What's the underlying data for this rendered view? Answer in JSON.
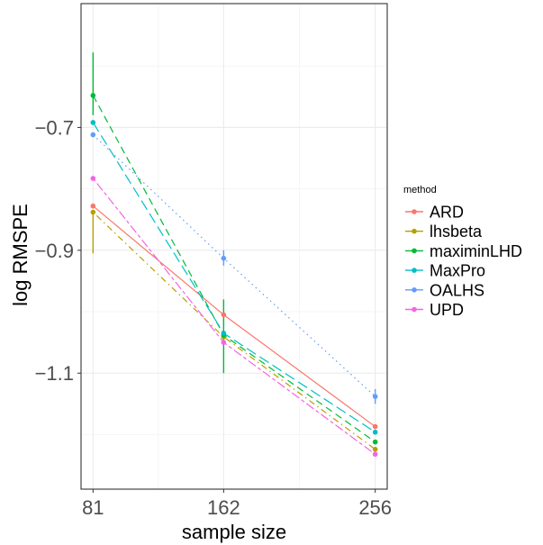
{
  "chart_data": {
    "type": "line",
    "xlabel": "sample size",
    "ylabel": "log RMSPE",
    "x_ticks": [
      81,
      162,
      256
    ],
    "y_ticks": [
      -0.7,
      -0.9,
      -1.1
    ],
    "y_tick_labels": [
      "−0.7",
      "−0.9",
      "−1.1"
    ],
    "legend_title": "method",
    "legend_position": "right",
    "grid": true,
    "series": [
      {
        "name": "ARD",
        "color": "#F8766D",
        "dash": "solid",
        "points": [
          {
            "x": 81,
            "y": -0.828,
            "lo": -0.828,
            "hi": -0.828
          },
          {
            "x": 162,
            "y": -1.005,
            "lo": -1.005,
            "hi": -1.005
          },
          {
            "x": 256,
            "y": -1.187,
            "lo": -1.187,
            "hi": -1.187
          }
        ]
      },
      {
        "name": "lhsbeta",
        "color": "#B79F00",
        "dash": "dotdash",
        "points": [
          {
            "x": 81,
            "y": -0.838,
            "lo": -0.905,
            "hi": -0.838
          },
          {
            "x": 162,
            "y": -1.041,
            "lo": -1.041,
            "hi": -1.041
          },
          {
            "x": 256,
            "y": -1.224,
            "lo": -1.224,
            "hi": -1.224
          }
        ]
      },
      {
        "name": "maximinLHD",
        "color": "#00BA38",
        "dash": "dashed",
        "points": [
          {
            "x": 81,
            "y": -0.648,
            "lo": -0.68,
            "hi": -0.578
          },
          {
            "x": 162,
            "y": -1.038,
            "lo": -1.1,
            "hi": -0.98
          },
          {
            "x": 256,
            "y": -1.212,
            "lo": -1.212,
            "hi": -1.212
          }
        ]
      },
      {
        "name": "MaxPro",
        "color": "#00BFC4",
        "dash": "longdash",
        "points": [
          {
            "x": 81,
            "y": -0.692,
            "lo": -0.692,
            "hi": -0.692
          },
          {
            "x": 162,
            "y": -1.035,
            "lo": -1.035,
            "hi": -1.035
          },
          {
            "x": 256,
            "y": -1.196,
            "lo": -1.196,
            "hi": -1.196
          }
        ]
      },
      {
        "name": "OALHS",
        "color": "#619CFF",
        "dash": "dotted",
        "points": [
          {
            "x": 81,
            "y": -0.712,
            "lo": -0.712,
            "hi": -0.712
          },
          {
            "x": 162,
            "y": -0.913,
            "lo": -0.925,
            "hi": -0.9
          },
          {
            "x": 256,
            "y": -1.138,
            "lo": -1.15,
            "hi": -1.126
          }
        ]
      },
      {
        "name": "UPD",
        "color": "#F564E3",
        "dash": "twodash",
        "points": [
          {
            "x": 81,
            "y": -0.783,
            "lo": -0.783,
            "hi": -0.783
          },
          {
            "x": 162,
            "y": -1.05,
            "lo": -1.05,
            "hi": -1.05
          },
          {
            "x": 256,
            "y": -1.232,
            "lo": -1.232,
            "hi": -1.232
          }
        ]
      }
    ]
  }
}
